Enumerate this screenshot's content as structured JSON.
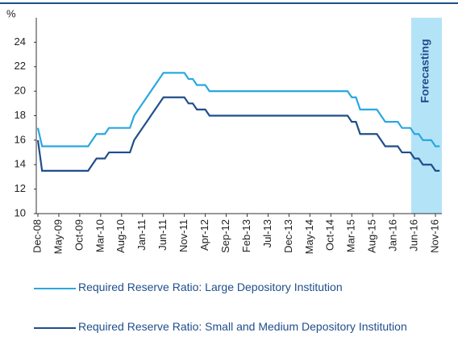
{
  "chart_data": {
    "type": "line",
    "y_axis_label": "%",
    "annotation": "Forecasting",
    "categories": [
      "Dec-08",
      null,
      null,
      null,
      null,
      "May-09",
      null,
      null,
      null,
      null,
      "Oct-09",
      null,
      null,
      null,
      null,
      "Mar-10",
      null,
      null,
      null,
      null,
      "Aug-10",
      null,
      null,
      null,
      null,
      "Jan-11",
      null,
      null,
      null,
      null,
      "Jun-11",
      null,
      null,
      null,
      null,
      "Nov-11",
      null,
      null,
      null,
      null,
      "Apr-12",
      null,
      null,
      null,
      null,
      "Sep-12",
      null,
      null,
      null,
      null,
      "Feb-13",
      null,
      null,
      null,
      null,
      "Jul-13",
      null,
      null,
      null,
      null,
      "Dec-13",
      null,
      null,
      null,
      null,
      "May-14",
      null,
      null,
      null,
      null,
      "Oct-14",
      null,
      null,
      null,
      null,
      "Mar-15",
      null,
      null,
      null,
      null,
      "Aug-15",
      null,
      null,
      null,
      null,
      "Jan-16",
      null,
      null,
      null,
      null,
      "Jun-16",
      null,
      null,
      null,
      null,
      "Nov-16",
      null
    ],
    "series": [
      {
        "name": "Required Reserve Ratio: Large Depository Institution",
        "color": "#29a8e0",
        "values": [
          17,
          15.5,
          15.5,
          15.5,
          15.5,
          15.5,
          15.5,
          15.5,
          15.5,
          15.5,
          15.5,
          15.5,
          15.5,
          16,
          16.5,
          16.5,
          16.5,
          17,
          17,
          17,
          17,
          17,
          17,
          18,
          18.5,
          19,
          19.5,
          20,
          20.5,
          21,
          21.5,
          21.5,
          21.5,
          21.5,
          21.5,
          21.5,
          21,
          21,
          20.5,
          20.5,
          20.5,
          20,
          20,
          20,
          20,
          20,
          20,
          20,
          20,
          20,
          20,
          20,
          20,
          20,
          20,
          20,
          20,
          20,
          20,
          20,
          20,
          20,
          20,
          20,
          20,
          20,
          20,
          20,
          20,
          20,
          20,
          20,
          20,
          20,
          20,
          19.5,
          19.5,
          18.5,
          18.5,
          18.5,
          18.5,
          18.5,
          18,
          17.5,
          17.5,
          17.5,
          17.5,
          17,
          17,
          17,
          16.5,
          16.5,
          16,
          16,
          16,
          15.5,
          15.5
        ]
      },
      {
        "name": "Required Reserve Ratio: Small and Medium Depository Institution",
        "color": "#1f4e8c",
        "values": [
          16,
          13.5,
          13.5,
          13.5,
          13.5,
          13.5,
          13.5,
          13.5,
          13.5,
          13.5,
          13.5,
          13.5,
          13.5,
          14,
          14.5,
          14.5,
          14.5,
          15,
          15,
          15,
          15,
          15,
          15,
          16,
          16.5,
          17,
          17.5,
          18,
          18.5,
          19,
          19.5,
          19.5,
          19.5,
          19.5,
          19.5,
          19.5,
          19,
          19,
          18.5,
          18.5,
          18.5,
          18,
          18,
          18,
          18,
          18,
          18,
          18,
          18,
          18,
          18,
          18,
          18,
          18,
          18,
          18,
          18,
          18,
          18,
          18,
          18,
          18,
          18,
          18,
          18,
          18,
          18,
          18,
          18,
          18,
          18,
          18,
          18,
          18,
          18,
          17.5,
          17.5,
          16.5,
          16.5,
          16.5,
          16.5,
          16.5,
          16,
          15.5,
          15.5,
          15.5,
          15.5,
          15,
          15,
          15,
          14.5,
          14.5,
          14,
          14,
          14,
          13.5,
          13.5
        ]
      }
    ],
    "ylim": [
      10,
      26
    ],
    "yticks": [
      10,
      12,
      14,
      16,
      18,
      20,
      22,
      24
    ]
  }
}
